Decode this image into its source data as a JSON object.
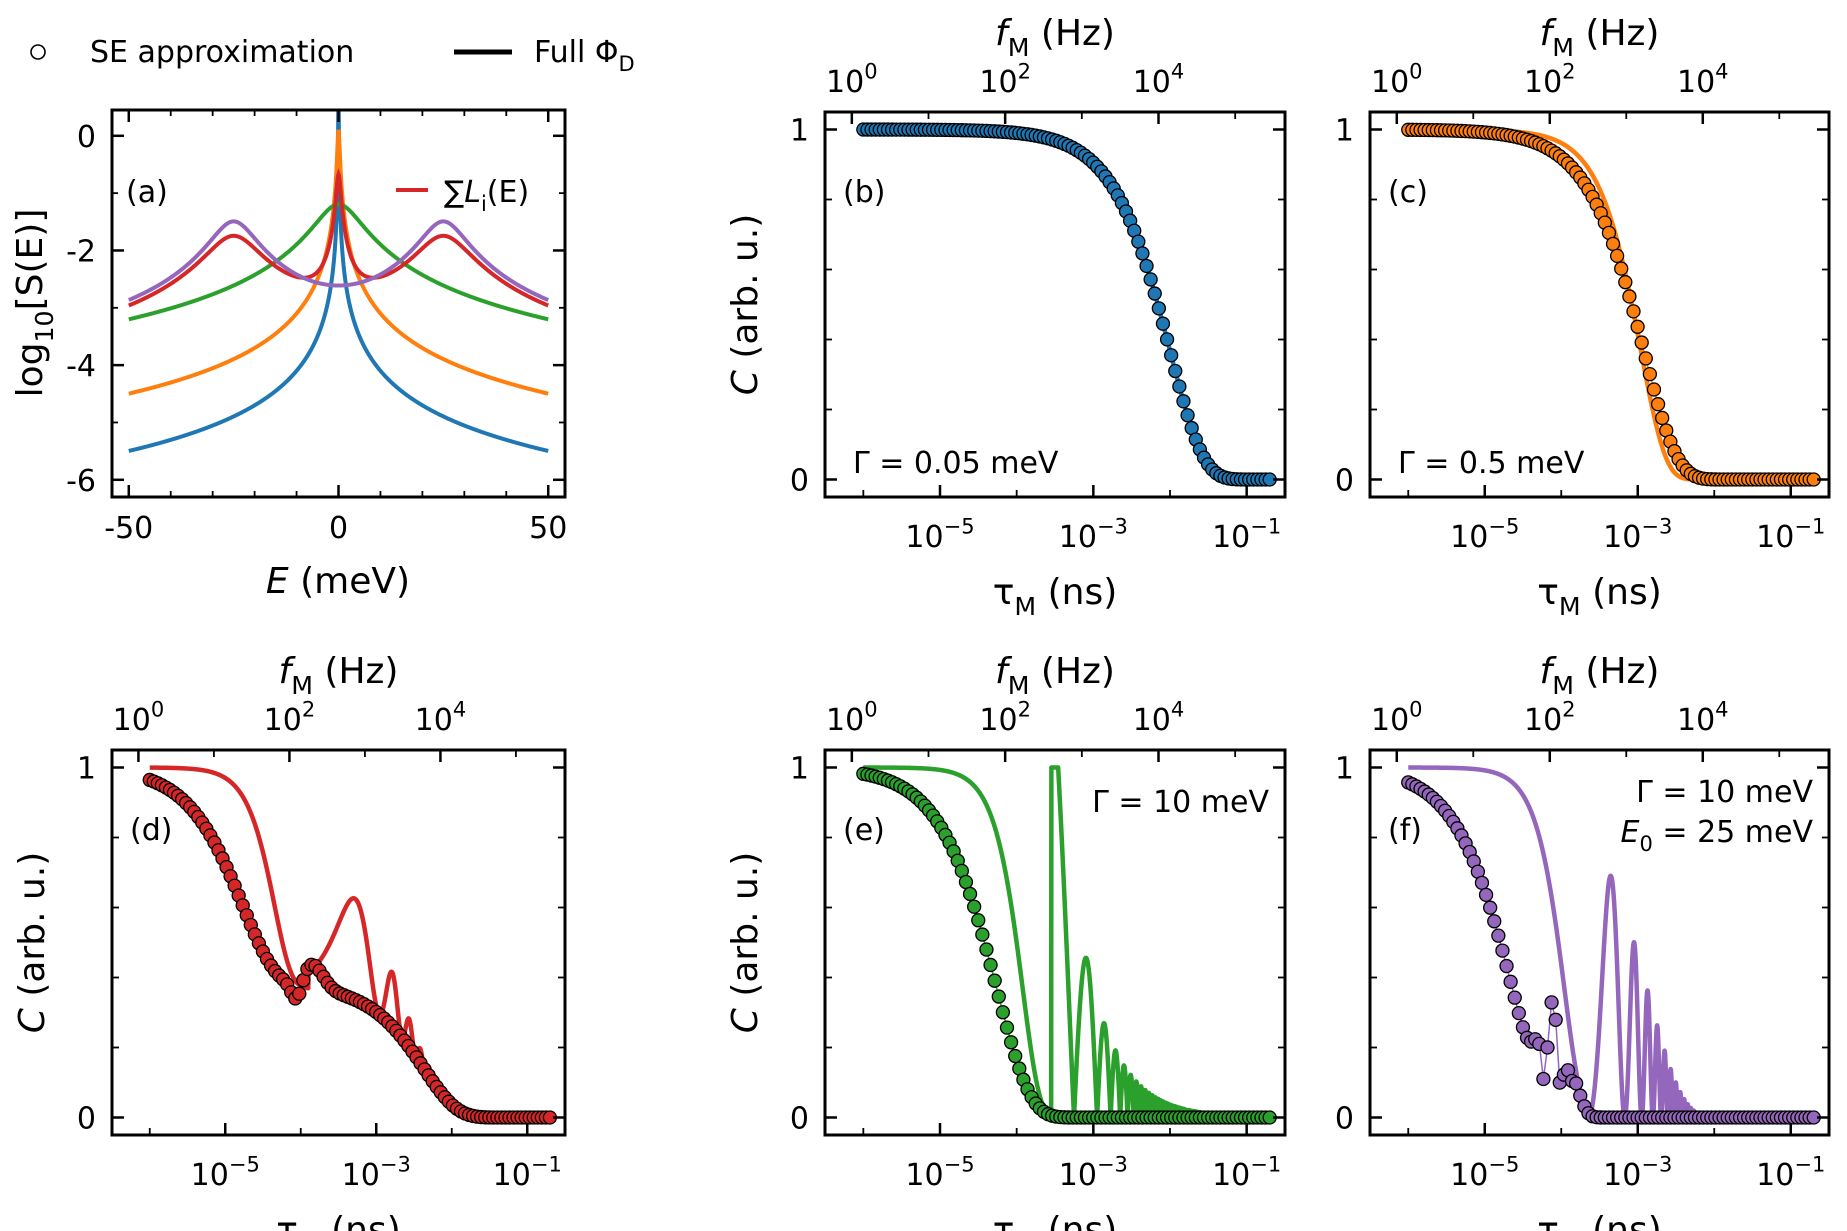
{
  "legend": {
    "se_label": "SE approximation",
    "full_label": "Full Φ",
    "full_sub": "D"
  },
  "chart_data": [
    {
      "id": "a",
      "panel_label": "(a)",
      "type": "line",
      "xlabel": "E",
      "xlabel_unit": " (meV)",
      "ylabel": "log",
      "ylabel_sub": "10",
      "ylabel_rest": "[S(E)]",
      "xlim": [
        -54,
        54
      ],
      "ylim": [
        -6.3,
        0.45
      ],
      "xticks": [
        -50,
        0,
        50
      ],
      "xtick_labels": [
        "-50",
        "0",
        "50"
      ],
      "yticks": [
        0,
        -2,
        -4,
        -6
      ],
      "ytick_labels": [
        "0",
        "-2",
        "-4",
        "-6"
      ],
      "legend_entry": "∑L",
      "legend_entry_sub": "i",
      "legend_entry_rest": "(E)",
      "series": [
        {
          "name": "Γ = 0.05 meV",
          "color": "#1f77b4",
          "kind": "lorentz",
          "gamma": 0.05,
          "E0": 0
        },
        {
          "name": "Γ = 0.5 meV",
          "color": "#ff7f0e",
          "kind": "lorentz",
          "gamma": 0.5,
          "E0": 0
        },
        {
          "name": "Γ = 10 meV",
          "color": "#2ca02c",
          "kind": "lorentz",
          "gamma": 10,
          "E0": 0
        },
        {
          "name": "Σ L_i(E)",
          "color": "#d62728",
          "kind": "sum",
          "components": [
            [
              0,
              1.0
            ],
            [
              25,
              12
            ],
            [
              -25,
              12
            ]
          ]
        },
        {
          "name": "Γ = 10 meV, E0 = 25 meV",
          "color": "#9467bd",
          "kind": "lorentz_pair",
          "gamma": 10,
          "E0": 25
        }
      ]
    },
    {
      "id": "b",
      "panel_label": "(b)",
      "type": "line",
      "color": "#1f77b4",
      "annotation": "Γ = 0.05 meV",
      "model": {
        "se": {
          "kind": "exp",
          "tau": 0.01
        },
        "full": {
          "kind": "exp",
          "tau": 0.01
        }
      },
      "xlabel": "τ",
      "xlabel_sub": "M",
      "xlabel_unit": " (ns)",
      "ylabel": "C",
      "ylabel_unit": " (arb. u.)",
      "top_label": "f",
      "top_label_sub": "M",
      "top_label_unit": " (Hz)",
      "xlim_log10": [
        -6.5,
        -0.5
      ],
      "ylim": [
        -0.05,
        1.05
      ],
      "x_range_log10": [
        -6.0,
        -0.7
      ],
      "xticks_log10": [
        -5,
        -3,
        -1
      ],
      "xtick_labels": [
        "10",
        "10",
        "10"
      ],
      "xtick_exps": [
        "−5",
        "−3",
        "−1"
      ],
      "top_ticks_log10": [
        0,
        2,
        4
      ],
      "top_tick_labels": [
        "10",
        "10",
        "10"
      ],
      "top_tick_exps": [
        "0",
        "2",
        "4"
      ],
      "yticks": [
        0,
        1
      ],
      "ytick_labels": [
        "0",
        "1"
      ]
    },
    {
      "id": "c",
      "panel_label": "(c)",
      "type": "line",
      "color": "#ff7f0e",
      "annotation": "Γ = 0.5 meV",
      "model": {
        "se": {
          "kind": "exp",
          "tau": 0.0012
        },
        "full": {
          "kind": "expsq",
          "tau": 0.0011
        }
      },
      "xlabel": "τ",
      "xlabel_sub": "M",
      "xlabel_unit": " (ns)",
      "top_label": "f",
      "top_label_sub": "M",
      "top_label_unit": " (Hz)",
      "xlim_log10": [
        -6.5,
        -0.5
      ],
      "ylim": [
        -0.05,
        1.05
      ],
      "x_range_log10": [
        -6.0,
        -0.7
      ],
      "xticks_log10": [
        -5,
        -3,
        -1
      ],
      "xtick_labels": [
        "10",
        "10",
        "10"
      ],
      "xtick_exps": [
        "−5",
        "−3",
        "−1"
      ],
      "top_ticks_log10": [
        0,
        2,
        4
      ],
      "top_tick_labels": [
        "10",
        "10",
        "10"
      ],
      "top_tick_exps": [
        "0",
        "2",
        "4"
      ],
      "yticks": [
        0,
        1
      ],
      "ytick_labels": [
        "0",
        "1"
      ]
    },
    {
      "id": "d",
      "panel_label": "(d)",
      "type": "line",
      "color": "#d62728",
      "annotation": "",
      "model": {
        "se": {
          "kind": "sum_se"
        },
        "full": {
          "kind": "sum_full"
        }
      },
      "xlabel": "τ",
      "xlabel_sub": "M",
      "xlabel_unit": " (ns)",
      "ylabel": "C",
      "ylabel_unit": " (arb. u.)",
      "top_label": "f",
      "top_label_sub": "M",
      "top_label_unit": " (Hz)",
      "xlim_log10": [
        -6.5,
        -0.5
      ],
      "ylim": [
        -0.05,
        1.05
      ],
      "x_range_log10": [
        -6.0,
        -0.7
      ],
      "xticks_log10": [
        -5,
        -3,
        -1
      ],
      "xtick_labels": [
        "10",
        "10",
        "10"
      ],
      "xtick_exps": [
        "−5",
        "−3",
        "−1"
      ],
      "top_ticks_log10": [
        0,
        2,
        4
      ],
      "top_tick_labels": [
        "10",
        "10",
        "10"
      ],
      "top_tick_exps": [
        "0",
        "2",
        "4"
      ],
      "yticks": [
        0,
        1
      ],
      "ytick_labels": [
        "0",
        "1"
      ]
    },
    {
      "id": "e",
      "panel_label": "(e)",
      "type": "line",
      "color": "#2ca02c",
      "annotation": "Γ = 10 meV",
      "model": {
        "se": {
          "kind": "exp",
          "tau": 5.5e-05
        },
        "full": {
          "kind": "sinc_single"
        }
      },
      "xlabel": "τ",
      "xlabel_sub": "M",
      "xlabel_unit": " (ns)",
      "ylabel": "C",
      "ylabel_unit": " (arb. u.)",
      "top_label": "f",
      "top_label_sub": "M",
      "top_label_unit": " (Hz)",
      "xlim_log10": [
        -6.5,
        -0.5
      ],
      "ylim": [
        -0.05,
        1.05
      ],
      "x_range_log10": [
        -6.0,
        -0.7
      ],
      "xticks_log10": [
        -5,
        -3,
        -1
      ],
      "xtick_labels": [
        "10",
        "10",
        "10"
      ],
      "xtick_exps": [
        "−5",
        "−3",
        "−1"
      ],
      "top_ticks_log10": [
        0,
        2,
        4
      ],
      "top_tick_labels": [
        "10",
        "10",
        "10"
      ],
      "top_tick_exps": [
        "0",
        "2",
        "4"
      ],
      "yticks": [
        0,
        1
      ],
      "ytick_labels": [
        "0",
        "1"
      ]
    },
    {
      "id": "f",
      "panel_label": "(f)",
      "type": "line",
      "color": "#9467bd",
      "annotation": "Γ = 10 meV",
      "annotation2": "E",
      "annotation2_sub": "0",
      "annotation2_rest": " = 25 meV",
      "model": {
        "se": {
          "kind": "osc_se"
        },
        "full": {
          "kind": "osc_full"
        }
      },
      "xlabel": "τ",
      "xlabel_sub": "M",
      "xlabel_unit": " (ns)",
      "top_label": "f",
      "top_label_sub": "M",
      "top_label_unit": " (Hz)",
      "xlim_log10": [
        -6.5,
        -0.5
      ],
      "ylim": [
        -0.05,
        1.05
      ],
      "x_range_log10": [
        -6.0,
        -0.7
      ],
      "xticks_log10": [
        -5,
        -3,
        -1
      ],
      "xtick_labels": [
        "10",
        "10",
        "10"
      ],
      "xtick_exps": [
        "−5",
        "−3",
        "−1"
      ],
      "top_ticks_log10": [
        0,
        2,
        4
      ],
      "top_tick_labels": [
        "10",
        "10",
        "10"
      ],
      "top_tick_exps": [
        "0",
        "2",
        "4"
      ],
      "yticks": [
        0,
        1
      ],
      "ytick_labels": [
        "0",
        "1"
      ]
    }
  ]
}
